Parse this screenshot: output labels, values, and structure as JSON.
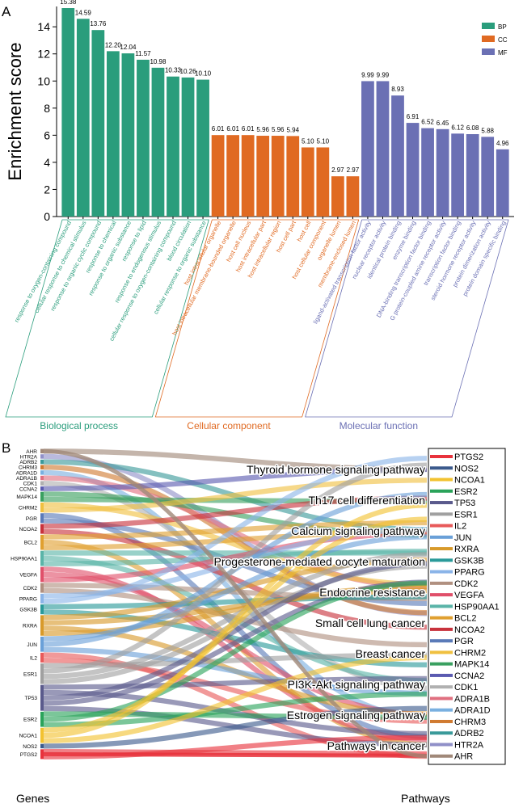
{
  "panel_a_label": "A",
  "panel_b_label": "B",
  "chart_data": [
    {
      "type": "bar",
      "ylabel": "Enrichment score",
      "ylim": [
        0,
        15.5
      ],
      "yticks": [
        0,
        2,
        4,
        6,
        8,
        10,
        12,
        14
      ],
      "legend_position": "top-right",
      "series": [
        {
          "name": "BP",
          "color": "#2a9d7c",
          "group_label": "Biological process",
          "categories": [
            "response to oxygen-containing compound",
            "cellular response to chemical stimulus",
            "response to organic cyclic compound",
            "response to chemical",
            "response to organic substance",
            "response to lipid",
            "response to endogenous stimulus",
            "cellular response to oxygen-containing compound",
            "blood circulation",
            "cellular response to organic substance"
          ],
          "values": [
            15.38,
            14.59,
            13.76,
            12.2,
            12.04,
            11.57,
            10.98,
            10.33,
            10.26,
            10.1
          ],
          "labels": [
            "15.38",
            "14.59",
            "13.76",
            "12.20",
            "12.04",
            "11.57",
            "10.98",
            "10.33",
            "10.26",
            "10.10"
          ]
        },
        {
          "name": "CC",
          "color": "#e06a22",
          "group_label": "Cellular component",
          "categories": [
            "host intracellular organelle",
            "host intracellular membrane-bounded organelle",
            "host cell nucleus",
            "host intracellular part",
            "host intracellular region",
            "host cell part",
            "host cell",
            "host cellular component",
            "organelle lumen",
            "membrane-enclosed lumen"
          ],
          "values": [
            6.01,
            6.01,
            6.01,
            5.96,
            5.96,
            5.94,
            5.1,
            5.1,
            2.97,
            2.97
          ],
          "labels": [
            "6.01",
            "6.01",
            "6.01",
            "5.96",
            "5.96",
            "5.94",
            "5.10",
            "5.10",
            "2.97",
            "2.97"
          ]
        },
        {
          "name": "MF",
          "color": "#6b70b4",
          "group_label": "Molecular function",
          "categories": [
            "ligand-activated transcription factor activity",
            "nuclear receptor activity",
            "identical protein binding",
            "enzyme binding",
            "DNA-binding transcription factor binding",
            "G protein-coupled amine receptor activity",
            "transcription factor binding",
            "steroid hormone receptor activity",
            "protein dimerization activity",
            "protein domain specific binding"
          ],
          "values": [
            9.99,
            9.99,
            8.93,
            6.91,
            6.52,
            6.45,
            6.12,
            6.08,
            5.88,
            4.96
          ],
          "labels": [
            "9.99",
            "9.99",
            "8.93",
            "6.91",
            "6.52",
            "6.45",
            "6.12",
            "6.08",
            "5.88",
            "4.96"
          ]
        }
      ]
    },
    {
      "type": "sankey",
      "left_axis_label": "Genes",
      "right_axis_label": "Pathways",
      "genes": [
        "AHR",
        "HTR2A",
        "ADRB2",
        "CHRM3",
        "ADRA1D",
        "ADRA1B",
        "CDK1",
        "CCNA2",
        "MAPK14",
        "CHRM2",
        "PGR",
        "NCOA2",
        "BCL2",
        "HSP90AA1",
        "VEGFA",
        "CDK2",
        "PPARG",
        "GSK3B",
        "RXRA",
        "JUN",
        "IL2",
        "ESR1",
        "TP53",
        "ESR2",
        "NCOA1",
        "NOS2",
        "PTGS2"
      ],
      "gene_weights": [
        1,
        1,
        1,
        1,
        1,
        1,
        1,
        1,
        2,
        2,
        2,
        2,
        3,
        3,
        3,
        2,
        2,
        2,
        4,
        3,
        2,
        4,
        5,
        3,
        3,
        1,
        2
      ],
      "pathways": [
        "Thyroid hormone signaling pathway",
        "Th17 cell differentiation",
        "Calcium signaling pathway",
        "Progesterone-mediated oocyte maturation",
        "Endocrine resistance",
        "Small cell lung cancer",
        "Breast cancer",
        "PI3K-Akt signaling pathway",
        "Estrogen signaling pathway",
        "Pathways in cancer"
      ],
      "right_gene_legend": [
        "PTGS2",
        "NOS2",
        "NCOA1",
        "ESR2",
        "TP53",
        "ESR1",
        "IL2",
        "JUN",
        "RXRA",
        "GSK3B",
        "PPARG",
        "CDK2",
        "VEGFA",
        "HSP90AA1",
        "BCL2",
        "NCOA2",
        "PGR",
        "CHRM2",
        "MAPK14",
        "CCNA2",
        "CDK1",
        "ADRA1B",
        "ADRA1D",
        "CHRM3",
        "ADRB2",
        "HTR2A",
        "AHR"
      ],
      "legend_colors": [
        "#e8323c",
        "#3b5a8c",
        "#f2c230",
        "#2aa35a",
        "#5a5a8c",
        "#a0a0a0",
        "#e85a5a",
        "#6aa0d8",
        "#d89a2a",
        "#2a9a9a",
        "#8ab4e8",
        "#b09080",
        "#e0506a",
        "#5ab4a8",
        "#e0a030",
        "#c8323c",
        "#5a7ab8",
        "#f0c040",
        "#3aa060",
        "#5a5ab0",
        "#b0b0b0",
        "#e07080",
        "#7ab0e0",
        "#d07a30",
        "#3a9a9a",
        "#9090c8",
        "#a08878"
      ]
    }
  ]
}
